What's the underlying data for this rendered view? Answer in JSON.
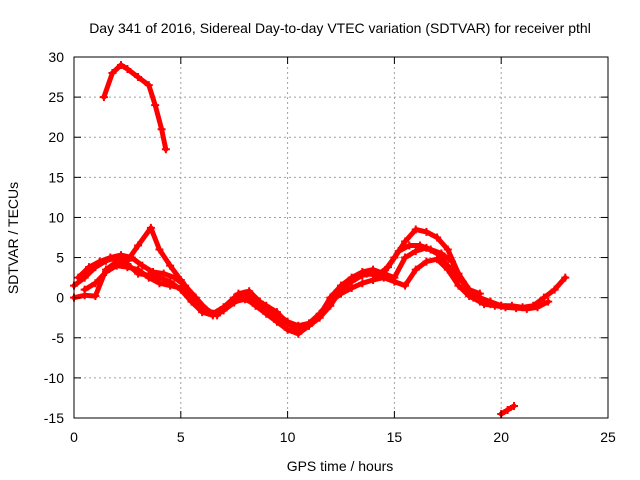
{
  "chart_data": {
    "type": "scatter",
    "title": "Day 341 of 2016, Sidereal Day-to-day VTEC variation (SDTVAR) for receiver pthl",
    "xlabel": "GPS time / hours",
    "ylabel": "SDTVAR / TECUs",
    "xlim": [
      0,
      25
    ],
    "ylim": [
      -15,
      30
    ],
    "xticks": [
      0,
      5,
      10,
      15,
      20,
      25
    ],
    "yticks": [
      -15,
      -10,
      -5,
      0,
      5,
      10,
      15,
      20,
      25,
      30
    ],
    "grid": true,
    "legend": "none",
    "color": "#ff0000",
    "series": [
      {
        "name": "arc-top",
        "x": [
          1.4,
          1.8,
          2.2,
          2.5,
          3.0,
          3.5,
          3.8,
          4.1,
          4.3
        ],
        "y": [
          25,
          28,
          29,
          28.5,
          27.5,
          26.5,
          24,
          21,
          18.5
        ]
      },
      {
        "name": "arc-a",
        "x": [
          0.0,
          0.5,
          1.0,
          1.5,
          2.0,
          2.5,
          3.0,
          3.6,
          4.0,
          4.5,
          5.0,
          5.5,
          6.0,
          6.5,
          7.0,
          7.5,
          8.0,
          8.5,
          9.0,
          9.5,
          10.0,
          10.5,
          11.0,
          11.5,
          12.0,
          12.5,
          13.0,
          13.5,
          14.0,
          14.5,
          15.0,
          15.5,
          16.0,
          16.5,
          17.0,
          17.5,
          18.0,
          18.5,
          19.0,
          19.5,
          20.0,
          20.5,
          21.0,
          21.5,
          22.0,
          22.5,
          23.0
        ],
        "y": [
          1.5,
          2.5,
          3.8,
          4.6,
          5.0,
          4.6,
          6.5,
          8.7,
          6.0,
          4.0,
          2.2,
          0.5,
          -1.0,
          -2.0,
          -1.6,
          -0.6,
          0.0,
          -1.0,
          -2.0,
          -3.0,
          -4.0,
          -4.5,
          -3.5,
          -2.5,
          -1.0,
          1.0,
          2.0,
          2.8,
          3.0,
          3.2,
          5.0,
          7.0,
          8.5,
          8.2,
          7.5,
          6.0,
          3.0,
          1.0,
          0.0,
          -0.5,
          -1.0,
          -1.0,
          -1.2,
          -1.0,
          0.0,
          1.0,
          2.5
        ]
      },
      {
        "name": "arc-b",
        "x": [
          0.2,
          0.7,
          1.2,
          1.7,
          2.2,
          2.7,
          3.2,
          3.7,
          4.2,
          4.7,
          5.2,
          5.7,
          6.2,
          6.7,
          7.2,
          7.7,
          8.2,
          8.7,
          9.2,
          9.7,
          10.2,
          10.7,
          11.2,
          11.7,
          12.2,
          12.7,
          13.2,
          13.7,
          14.2,
          14.7,
          15.2,
          15.7,
          16.2,
          16.7,
          17.2,
          17.7,
          18.2,
          18.7,
          19.2,
          19.7,
          20.2,
          20.7,
          21.2,
          21.7,
          22.2
        ],
        "y": [
          2.5,
          3.8,
          4.5,
          5.0,
          5.3,
          5.0,
          4.0,
          3.2,
          3.0,
          2.5,
          1.5,
          0.0,
          -1.5,
          -2.2,
          -1.0,
          0.5,
          0.8,
          -0.5,
          -2.0,
          -2.8,
          -3.5,
          -3.8,
          -3.0,
          -1.5,
          0.5,
          1.5,
          2.5,
          3.0,
          2.8,
          3.8,
          5.8,
          6.5,
          6.5,
          6.0,
          5.5,
          4.5,
          2.0,
          0.0,
          -0.8,
          -1.0,
          -1.2,
          -1.3,
          -1.4,
          -1.2,
          -0.5
        ]
      },
      {
        "name": "arc-c",
        "x": [
          0.0,
          0.5,
          1.0,
          1.5,
          2.0,
          2.5,
          3.0,
          3.5,
          4.0,
          4.5,
          5.0,
          5.5,
          6.0,
          6.5,
          7.0,
          7.5,
          8.0,
          8.5,
          9.0,
          9.5,
          10.0,
          10.5,
          11.0,
          11.5,
          12.0,
          12.5,
          13.0,
          13.5,
          14.0,
          14.5,
          15.0,
          15.5,
          16.0,
          16.5,
          17.0,
          17.5,
          18.0,
          18.5,
          19.0,
          19.5,
          20.0
        ],
        "y": [
          0.0,
          0.3,
          0.2,
          3.5,
          4.5,
          4.2,
          3.0,
          2.8,
          2.5,
          2.0,
          1.0,
          -0.5,
          -1.8,
          -2.2,
          -1.5,
          -0.5,
          -0.2,
          -0.8,
          -1.5,
          -2.0,
          -3.0,
          -3.5,
          -3.2,
          -2.0,
          -0.5,
          0.5,
          1.2,
          1.8,
          2.2,
          2.5,
          2.0,
          1.5,
          3.5,
          4.5,
          4.8,
          3.5,
          1.5,
          0.2,
          -0.5,
          -0.8,
          -1.0
        ]
      },
      {
        "name": "arc-d",
        "x": [
          0.5,
          1.0,
          1.5,
          2.0,
          2.5,
          3.0,
          3.5,
          4.0,
          4.5,
          5.0,
          5.5,
          6.0,
          6.5,
          7.0,
          7.5,
          8.0,
          8.5,
          9.0,
          9.5,
          10.0,
          10.5,
          11.0,
          11.5,
          12.0,
          12.5,
          13.0,
          13.5,
          14.0,
          14.5,
          15.0,
          15.5,
          16.0,
          16.5,
          17.0,
          17.5,
          18.0,
          18.5,
          19.0
        ],
        "y": [
          1.0,
          1.8,
          3.2,
          4.0,
          3.8,
          3.5,
          2.5,
          1.8,
          1.5,
          1.2,
          0.0,
          -1.5,
          -2.0,
          -1.2,
          0.0,
          0.5,
          -0.2,
          -1.0,
          -1.8,
          -3.2,
          -4.2,
          -3.5,
          -2.2,
          0.0,
          1.5,
          2.5,
          3.2,
          3.5,
          3.0,
          2.5,
          5.0,
          5.8,
          6.2,
          5.5,
          4.0,
          2.5,
          1.0,
          0.5
        ]
      },
      {
        "name": "arc-e",
        "x": [
          20.0,
          20.3,
          20.6
        ],
        "y": [
          -14.5,
          -14.0,
          -13.5
        ]
      }
    ]
  }
}
